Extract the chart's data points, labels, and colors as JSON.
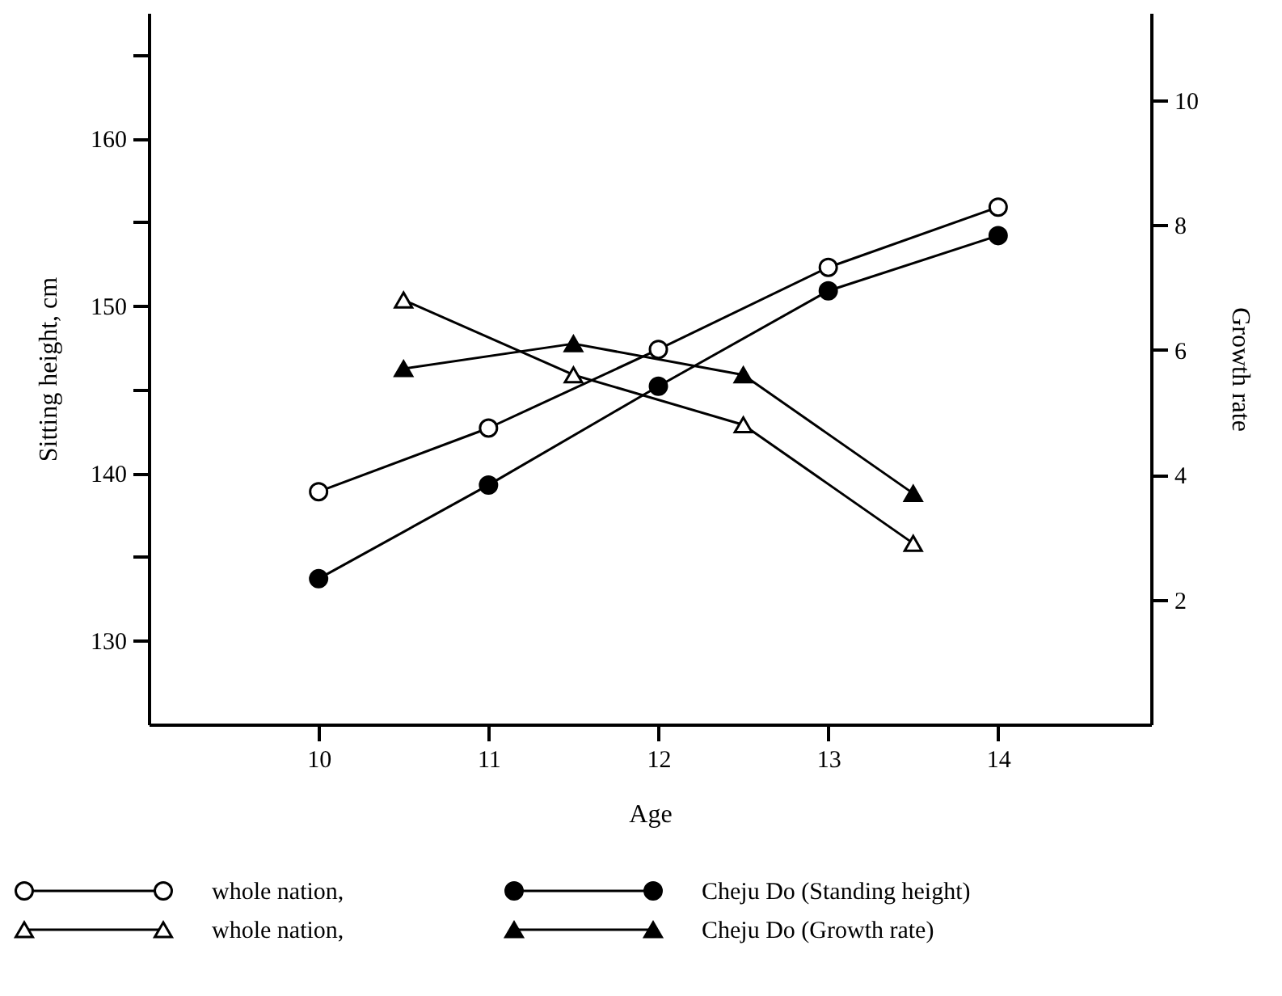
{
  "chart_data": {
    "type": "line",
    "xlabel": "Age",
    "ylabel": "Sitting height, cm",
    "y2label": "Growth rate",
    "x": [
      10,
      11,
      12,
      13,
      14
    ],
    "xlim": [
      9,
      14.9
    ],
    "xticks": [
      10,
      11,
      12,
      13,
      14
    ],
    "ylim": [
      125,
      167.5
    ],
    "yticks": [
      130,
      {
        "value": 135,
        "label": null
      },
      140,
      {
        "value": 145,
        "label": null
      },
      150,
      {
        "value": 155,
        "label": null
      },
      160,
      {
        "value": 165,
        "label": null
      }
    ],
    "y2lim": [
      0,
      11.4
    ],
    "y2ticks": [
      2,
      4,
      6,
      8,
      10
    ],
    "legend": "bottom",
    "line_style": "solid",
    "series": [
      {
        "name": "whole nation,",
        "color": "#ffffff",
        "marker": "circle",
        "values": [
          138.9,
          142.7,
          147.4,
          152.3,
          155.9
        ]
      },
      {
        "name": "Cheju Do (Standing height)",
        "color": "#000000",
        "marker": "circle",
        "values": [
          133.7,
          139.3,
          145.2,
          150.9,
          154.2
        ]
      },
      {
        "name": "whole nation,",
        "color": "#ffffff",
        "marker": "triangle",
        "axis": "y2",
        "x": [
          10.5,
          11.5,
          12.5,
          13.5
        ],
        "values": [
          6.8,
          5.6,
          4.8,
          2.9
        ]
      },
      {
        "name": "Cheju Do (Growth rate)",
        "color": "#000000",
        "marker": "triangle",
        "axis": "y2",
        "x": [
          10.5,
          11.5,
          12.5,
          13.5
        ],
        "values": [
          5.7,
          6.1,
          5.6,
          3.7
        ]
      }
    ]
  }
}
